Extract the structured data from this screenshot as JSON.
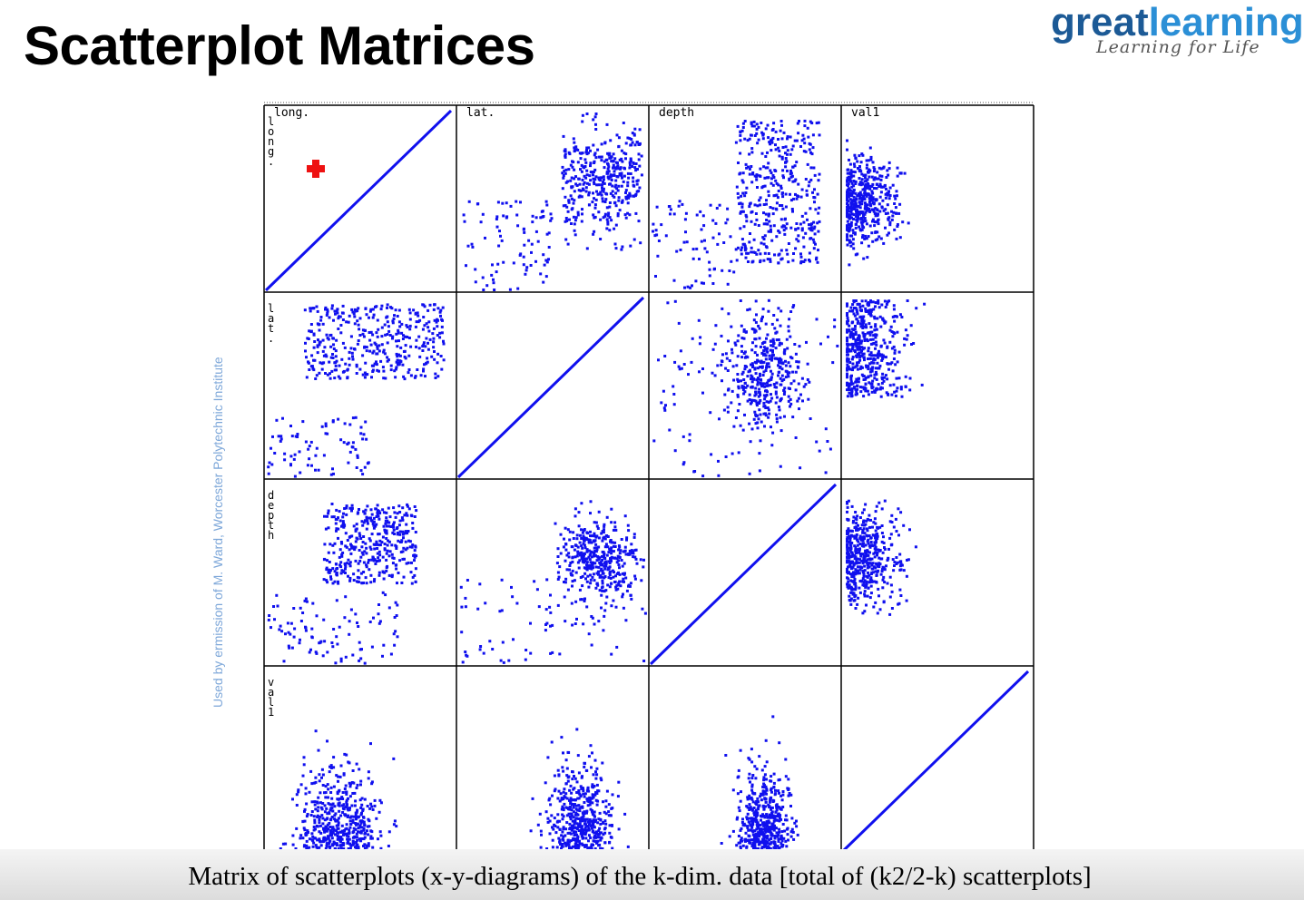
{
  "slide": {
    "title": "Scatterplot Matrices",
    "caption": "Matrix of scatterplots (x-y-diagrams) of the k-dim. data [total of (k2/2-k) scatterplots]",
    "credit": "Used by ermission of M. Ward, Worcester Polytechnic Institute"
  },
  "logo": {
    "word_great": "great",
    "word_learning": "learning",
    "tagline": "Learning for Life",
    "color_great": "#1c5a96",
    "color_learning": "#2b8fd6"
  },
  "colors": {
    "points": "#1010ee",
    "cursor": "#ee1111",
    "grid": "#000000"
  },
  "chart_data": {
    "type": "scatter",
    "title": "",
    "variables": [
      "long.",
      "lat.",
      "depth",
      "val1"
    ],
    "row_labels": [
      "long.",
      "lat.",
      "depth",
      "val1"
    ],
    "column_labels": [
      "long.",
      "lat.",
      "depth",
      "val1"
    ],
    "layout": "4x4 matrix, diagonal cells show identity line",
    "axes_ticks": false,
    "grid": false,
    "cursor_marker": "red cross in top-left cell",
    "pairs": [
      {
        "x": "lat.",
        "y": "long.",
        "pattern": "positive, dense cluster upper-right with sparse streaks lower-left"
      },
      {
        "x": "depth",
        "y": "long.",
        "pattern": "positive, dense diagonal band"
      },
      {
        "x": "val1",
        "y": "long.",
        "pattern": "dense at low val1, fanning right"
      },
      {
        "x": "long.",
        "y": "lat.",
        "pattern": "dense horizontal band upper, sparse streaks below"
      },
      {
        "x": "depth",
        "y": "lat.",
        "pattern": "central cluster with scattered segments"
      },
      {
        "x": "val1",
        "y": "lat.",
        "pattern": "horizontal bands, dense at low val1"
      },
      {
        "x": "long.",
        "y": "depth",
        "pattern": "positive diagonal band, sparse streaks below"
      },
      {
        "x": "lat.",
        "y": "depth",
        "pattern": "cluster right-center with scattered segments"
      },
      {
        "x": "val1",
        "y": "depth",
        "pattern": "dense at low val1, centered vertically"
      },
      {
        "x": "long.",
        "y": "val1",
        "pattern": "mound-shaped distribution centered left"
      },
      {
        "x": "lat.",
        "y": "val1",
        "pattern": "vertical columns right-center"
      },
      {
        "x": "depth",
        "y": "val1",
        "pattern": "vertical column center-right"
      }
    ]
  }
}
